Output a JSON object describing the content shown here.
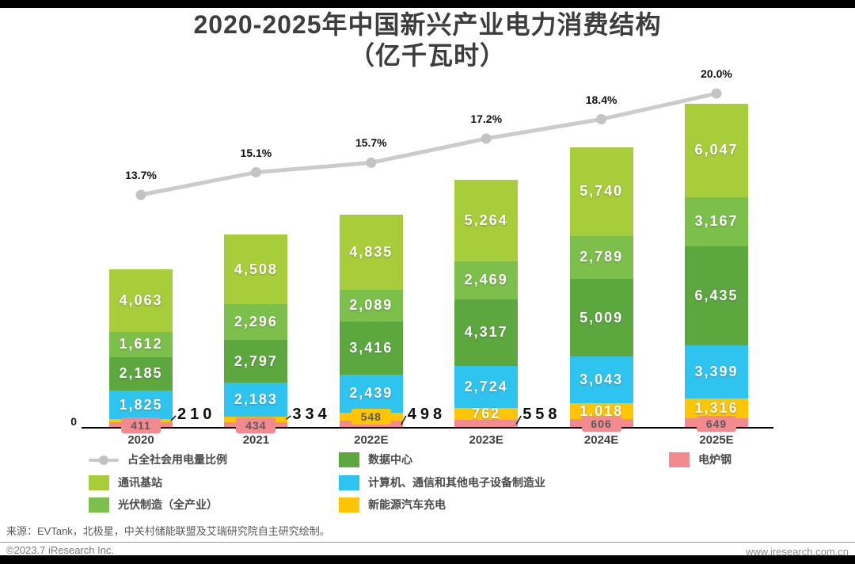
{
  "page": {
    "title_line1": "2020-2025年中国新兴产业电力消费结构",
    "title_line2": "（亿千瓦时）",
    "source_note": "来源：EVTank，北极星，中关村储能联盟及艾瑞研究院自主研究绘制。",
    "copyright": "©2023.7 iResearch Inc.",
    "website": "www.iresearch.com.cn"
  },
  "chart_data": {
    "type": "bar",
    "subtype": "stacked-bar-with-line",
    "unit": "亿千瓦时",
    "title": "2020-2025年中国新兴产业电力消费结构（亿千瓦时）",
    "categories": [
      "2020",
      "2021",
      "2022E",
      "2023E",
      "2024E",
      "2025E"
    ],
    "series": [
      {
        "name": "通讯基站",
        "color": "#a8cd3a",
        "values": [
          4063,
          4508,
          4835,
          5264,
          5740,
          6047
        ],
        "label_modes": [
          "inside",
          "inside",
          "inside",
          "inside",
          "inside",
          "inside"
        ]
      },
      {
        "name": "光伏制造（全产业）",
        "color": "#7cbf4b",
        "values": [
          1612,
          2296,
          2089,
          2469,
          2789,
          3167
        ],
        "label_modes": [
          "inside",
          "inside",
          "inside",
          "inside",
          "inside",
          "inside"
        ]
      },
      {
        "name": "数据中心",
        "color": "#5ca73e",
        "values": [
          2185,
          2797,
          3416,
          4317,
          5009,
          6435
        ],
        "label_modes": [
          "inside",
          "inside",
          "inside",
          "inside",
          "inside",
          "inside"
        ]
      },
      {
        "name": "计算机、通信和其他电子设备制造业",
        "color": "#2ec4ef",
        "values": [
          1825,
          2183,
          2439,
          2724,
          3043,
          3399
        ],
        "label_modes": [
          "inside",
          "inside",
          "inside",
          "inside",
          "inside",
          "inside"
        ]
      },
      {
        "name": "新能源汽车充电",
        "color": "#fdc502",
        "values": [
          210,
          334,
          548,
          762,
          1018,
          1316
        ],
        "label_modes": [
          "callout",
          "callout",
          "badge",
          "inside",
          "inside",
          "inside"
        ]
      },
      {
        "name": "电炉钢",
        "color": "#f28b90",
        "values": [
          411,
          434,
          498,
          558,
          606,
          649
        ],
        "label_modes": [
          "badge",
          "badge",
          "callout",
          "callout",
          "badge",
          "badge"
        ]
      }
    ],
    "line_series": {
      "name": "占全社会用电量比例",
      "color": "#cbcbcb",
      "marker_color": "#c3c3c3",
      "values_pct": [
        13.7,
        15.1,
        15.7,
        17.2,
        18.4,
        20.0
      ]
    },
    "axis": {
      "origin_label": "0",
      "gridlines": false
    },
    "legend": [
      {
        "type": "line",
        "color": "#c9c9c9",
        "label": "占全社会用电量比例",
        "row": 0,
        "col": 0
      },
      {
        "type": "swatch",
        "color": "#5ca73e",
        "label": "数据中心",
        "row": 0,
        "col": 1
      },
      {
        "type": "swatch",
        "color": "#f28b90",
        "label": "电炉钢",
        "row": 0,
        "col": 2
      },
      {
        "type": "swatch",
        "color": "#a8cd3a",
        "label": "通讯基站",
        "row": 1,
        "col": 0
      },
      {
        "type": "swatch",
        "color": "#2ec4ef",
        "label": "计算机、通信和其他电子设备制造业",
        "row": 1,
        "col": 1
      },
      {
        "type": "swatch",
        "color": "#7cbf4b",
        "label": "光伏制造（全产业）",
        "row": 2,
        "col": 0
      },
      {
        "type": "swatch",
        "color": "#fdc502",
        "label": "新能源汽车充电",
        "row": 2,
        "col": 1
      }
    ]
  }
}
